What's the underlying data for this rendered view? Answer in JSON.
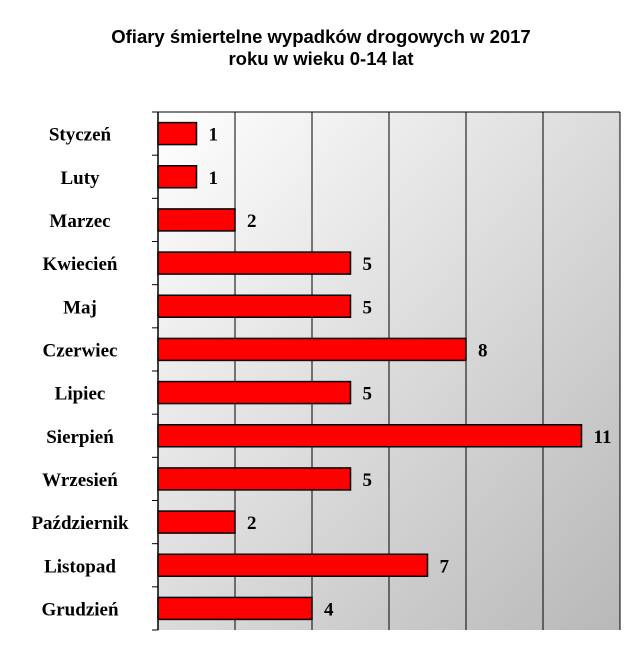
{
  "chart_data": {
    "type": "bar",
    "orientation": "horizontal",
    "title": [
      "Ofiary śmiertelne wypadków drogowych w 2017",
      "roku w wieku 0-14 lat"
    ],
    "categories": [
      "Styczeń",
      "Luty",
      "Marzec",
      "Kwiecień",
      "Maj",
      "Czerwiec",
      "Lipiec",
      "Sierpień",
      "Wrzesień",
      "Październik",
      "Listopad",
      "Grudzień"
    ],
    "values": [
      1,
      1,
      2,
      5,
      5,
      8,
      5,
      11,
      5,
      2,
      7,
      4
    ],
    "xlim": [
      0,
      12
    ],
    "grid_step": 2,
    "grid": true,
    "data_labels": true,
    "xlabel": "",
    "ylabel": "",
    "bar_color": "#ff0000",
    "bar_edge_color": "#000000",
    "plot_gradient": [
      "#ffffff",
      "#b8b8b8"
    ]
  }
}
